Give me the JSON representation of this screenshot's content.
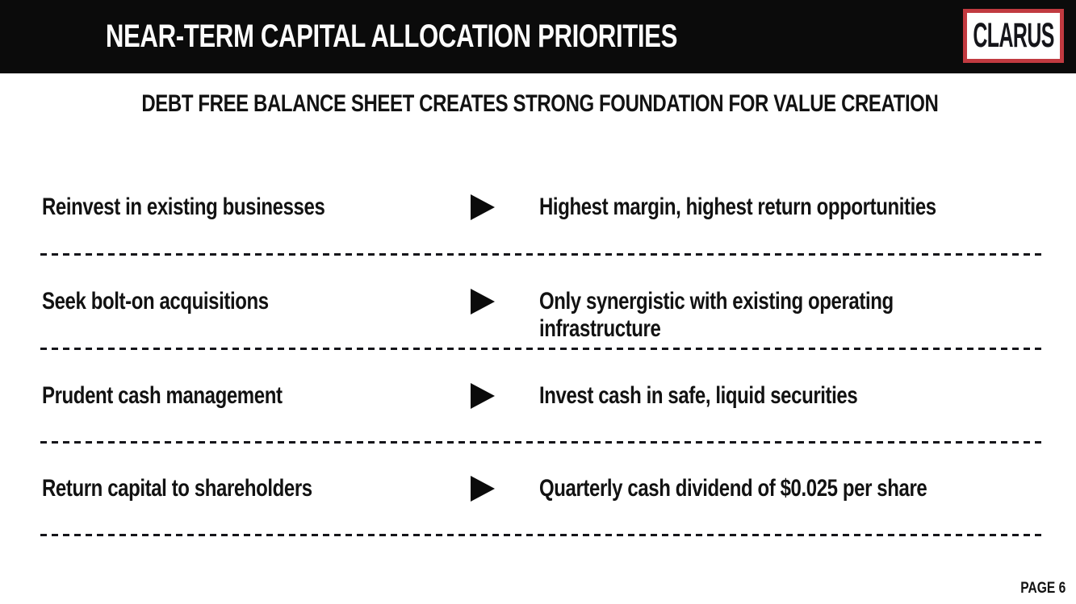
{
  "colors": {
    "header_bg": "#0b0b0b",
    "text": "#121212",
    "logo_border": "#c13a40",
    "logo_text": "#15151a",
    "background": "#ffffff"
  },
  "header": {
    "title": "NEAR-TERM CAPITAL ALLOCATION PRIORITIES",
    "logo_text": "CLARUS"
  },
  "subtitle": "DEBT FREE BALANCE SHEET CREATES STRONG FOUNDATION FOR VALUE CREATION",
  "rows": [
    {
      "priority": "Reinvest in existing businesses",
      "detail": "Highest margin, highest return opportunities"
    },
    {
      "priority": "Seek bolt-on acquisitions",
      "detail": "Only synergistic with existing operating\ninfrastructure"
    },
    {
      "priority": "Prudent cash management",
      "detail": "Invest cash in safe, liquid securities"
    },
    {
      "priority": "Return capital to shareholders",
      "detail": "Quarterly cash dividend of $0.025 per share"
    }
  ],
  "footer": {
    "page_label": "PAGE 6"
  },
  "icons": {
    "arrow": "right-triangle"
  }
}
